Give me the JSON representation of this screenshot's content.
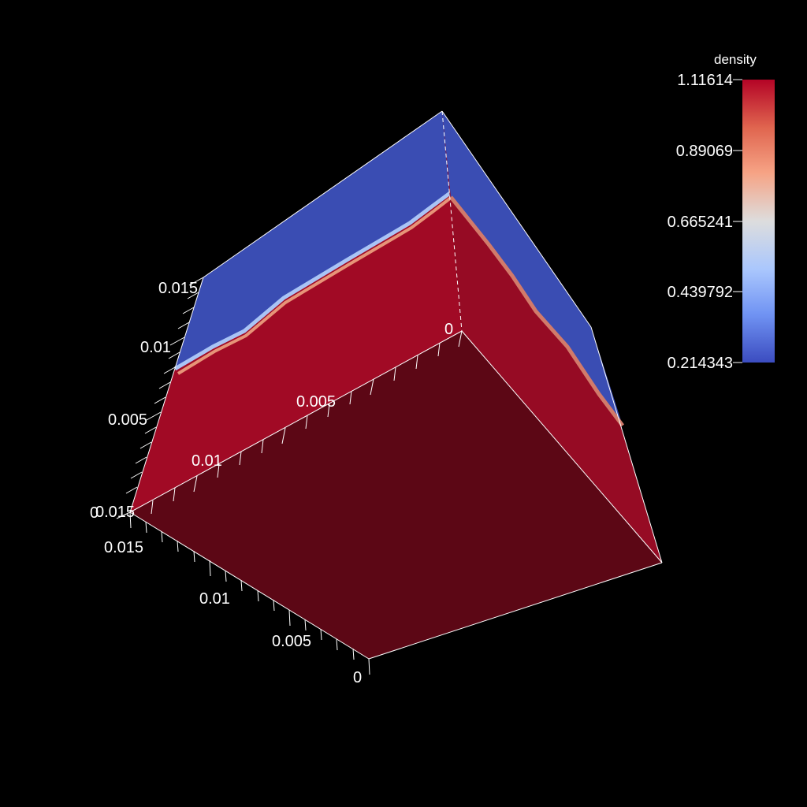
{
  "scene": {
    "background_color": "#000000",
    "face_colors": {
      "front_face": "#5c0715",
      "side_faces": "#a10a25",
      "top_band": "#3a4db3"
    }
  },
  "axes": {
    "vertical_axis": {
      "ticks": [
        "0.015",
        "0.01",
        "0.005",
        "0"
      ]
    },
    "top_depth_axis": {
      "ticks": [
        "0",
        "0.005",
        "0.01",
        "0.015"
      ]
    },
    "bottom_axis": {
      "ticks": [
        "0.015",
        "0.01",
        "0.005",
        "0"
      ]
    }
  },
  "colorbar": {
    "title": "density",
    "labels": [
      "1.11614",
      "0.89069",
      "0.665241",
      "0.439792",
      "0.214343"
    ],
    "colormap": [
      "#3b4cc0",
      "#7093f3",
      "#aac7fd",
      "#dddddd",
      "#f6a385",
      "#e0654f",
      "#b40426"
    ]
  }
}
